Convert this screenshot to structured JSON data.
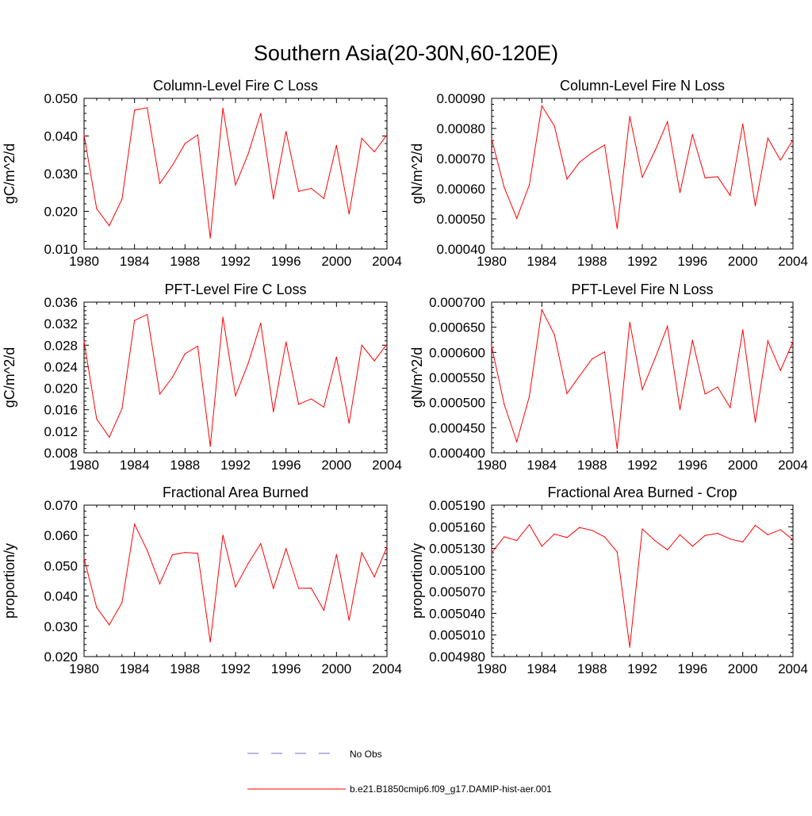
{
  "figure_title": "Southern Asia(20-30N,60-120E)",
  "legend": {
    "entries": [
      {
        "label": "No Obs",
        "color": "#6f6fc8",
        "style": "dashed"
      },
      {
        "label": "b.e21.B1850cmip6.f09_g17.DAMIP-hist-aer.001",
        "color": "#ff0000",
        "style": "solid"
      }
    ]
  },
  "chart_data": [
    {
      "type": "line",
      "title": "Column-Level Fire C Loss",
      "ylabel": "gC/m^2/d",
      "xlabel": "",
      "xlim": [
        1980,
        2004
      ],
      "ylim": [
        0.01,
        0.05
      ],
      "xticks": [
        1980,
        1984,
        1988,
        1992,
        1996,
        2000,
        2004
      ],
      "yticks": [
        "0.010",
        "0.020",
        "0.030",
        "0.040",
        "0.050"
      ],
      "x": [
        1980,
        1981,
        1982,
        1983,
        1984,
        1985,
        1986,
        1987,
        1988,
        1989,
        1990,
        1991,
        1992,
        1993,
        1994,
        1995,
        1996,
        1997,
        1998,
        1999,
        2000,
        2001,
        2002,
        2003,
        2004
      ],
      "series": [
        {
          "name": "b.e21.B1850cmip6.f09_g17.DAMIP-hist-aer.001",
          "color": "#ff0000",
          "values": [
            0.0403,
            0.0207,
            0.0162,
            0.0232,
            0.0469,
            0.0475,
            0.0274,
            0.0322,
            0.038,
            0.0403,
            0.0129,
            0.0474,
            0.027,
            0.0352,
            0.046,
            0.0233,
            0.0412,
            0.0253,
            0.0261,
            0.0234,
            0.0375,
            0.0193,
            0.0394,
            0.0358,
            0.0403
          ]
        }
      ]
    },
    {
      "type": "line",
      "title": "Column-Level Fire N Loss",
      "ylabel": "gN/m^2/d",
      "xlabel": "",
      "xlim": [
        1980,
        2004
      ],
      "ylim": [
        0.0004,
        0.0009
      ],
      "xticks": [
        1980,
        1984,
        1988,
        1992,
        1996,
        2000,
        2004
      ],
      "yticks": [
        "0.00040",
        "0.00050",
        "0.00060",
        "0.00070",
        "0.00080",
        "0.00090"
      ],
      "x": [
        1980,
        1981,
        1982,
        1983,
        1984,
        1985,
        1986,
        1987,
        1988,
        1989,
        1990,
        1991,
        1992,
        1993,
        1994,
        1995,
        1996,
        1997,
        1998,
        1999,
        2000,
        2001,
        2002,
        2003,
        2004
      ],
      "series": [
        {
          "name": "b.e21.B1850cmip6.f09_g17.DAMIP-hist-aer.001",
          "color": "#ff0000",
          "values": [
            0.000765,
            0.000605,
            0.000502,
            0.000612,
            0.000875,
            0.000808,
            0.000632,
            0.000688,
            0.00072,
            0.000745,
            0.000468,
            0.00084,
            0.000638,
            0.000725,
            0.000822,
            0.000587,
            0.00078,
            0.000636,
            0.00064,
            0.000578,
            0.000815,
            0.000543,
            0.000768,
            0.000695,
            0.000762
          ]
        }
      ]
    },
    {
      "type": "line",
      "title": "PFT-Level Fire C Loss",
      "ylabel": "gC/m^2/d",
      "xlabel": "",
      "xlim": [
        1980,
        2004
      ],
      "ylim": [
        0.008,
        0.036
      ],
      "xticks": [
        1980,
        1984,
        1988,
        1992,
        1996,
        2000,
        2004
      ],
      "yticks": [
        "0.008",
        "0.012",
        "0.016",
        "0.020",
        "0.024",
        "0.028",
        "0.032",
        "0.036"
      ],
      "x": [
        1980,
        1981,
        1982,
        1983,
        1984,
        1985,
        1986,
        1987,
        1988,
        1989,
        1990,
        1991,
        1992,
        1993,
        1994,
        1995,
        1996,
        1997,
        1998,
        1999,
        2000,
        2001,
        2002,
        2003,
        2004
      ],
      "series": [
        {
          "name": "b.e21.B1850cmip6.f09_g17.DAMIP-hist-aer.001",
          "color": "#ff0000",
          "values": [
            0.0287,
            0.0143,
            0.0109,
            0.0162,
            0.0326,
            0.0337,
            0.0189,
            0.022,
            0.0264,
            0.0278,
            0.0092,
            0.0332,
            0.0186,
            0.0246,
            0.0321,
            0.0156,
            0.0286,
            0.017,
            0.018,
            0.0165,
            0.0258,
            0.0135,
            0.028,
            0.0251,
            0.0282
          ]
        }
      ]
    },
    {
      "type": "line",
      "title": "PFT-Level Fire N Loss",
      "ylabel": "gN/m^2/d",
      "xlabel": "",
      "xlim": [
        1980,
        2004
      ],
      "ylim": [
        0.0004,
        0.0007
      ],
      "xticks": [
        1980,
        1984,
        1988,
        1992,
        1996,
        2000,
        2004
      ],
      "yticks": [
        "0.000400",
        "0.000450",
        "0.000500",
        "0.000550",
        "0.000600",
        "0.000650",
        "0.000700"
      ],
      "x": [
        1980,
        1981,
        1982,
        1983,
        1984,
        1985,
        1986,
        1987,
        1988,
        1989,
        1990,
        1991,
        1992,
        1993,
        1994,
        1995,
        1996,
        1997,
        1998,
        1999,
        2000,
        2001,
        2002,
        2003,
        2004
      ],
      "series": [
        {
          "name": "b.e21.B1850cmip6.f09_g17.DAMIP-hist-aer.001",
          "color": "#ff0000",
          "values": [
            0.000612,
            0.000497,
            0.000422,
            0.000512,
            0.000685,
            0.000635,
            0.000518,
            0.000553,
            0.000587,
            0.000601,
            0.000408,
            0.00066,
            0.000526,
            0.000587,
            0.000652,
            0.000486,
            0.000624,
            0.000517,
            0.000531,
            0.00049,
            0.000645,
            0.000461,
            0.000623,
            0.000564,
            0.000621
          ]
        }
      ]
    },
    {
      "type": "line",
      "title": "Fractional Area Burned",
      "ylabel": "proportion/y",
      "xlabel": "",
      "xlim": [
        1980,
        2004
      ],
      "ylim": [
        0.02,
        0.07
      ],
      "xticks": [
        1980,
        1984,
        1988,
        1992,
        1996,
        2000,
        2004
      ],
      "yticks": [
        "0.020",
        "0.030",
        "0.040",
        "0.050",
        "0.060",
        "0.070"
      ],
      "x": [
        1980,
        1981,
        1982,
        1983,
        1984,
        1985,
        1986,
        1987,
        1988,
        1989,
        1990,
        1991,
        1992,
        1993,
        1994,
        1995,
        1996,
        1997,
        1998,
        1999,
        2000,
        2001,
        2002,
        2003,
        2004
      ],
      "series": [
        {
          "name": "b.e21.B1850cmip6.f09_g17.DAMIP-hist-aer.001",
          "color": "#ff0000",
          "values": [
            0.0525,
            0.0362,
            0.0305,
            0.0378,
            0.0637,
            0.0551,
            0.044,
            0.0536,
            0.0544,
            0.0541,
            0.0248,
            0.0601,
            0.043,
            0.0507,
            0.0573,
            0.0425,
            0.0556,
            0.0425,
            0.0426,
            0.0353,
            0.0537,
            0.032,
            0.0543,
            0.0463,
            0.0562
          ]
        }
      ]
    },
    {
      "type": "line",
      "title": "Fractional Area Burned - Crop",
      "ylabel": "proportion/y",
      "xlabel": "",
      "xlim": [
        1980,
        2004
      ],
      "ylim": [
        0.00498,
        0.00519
      ],
      "xticks": [
        1980,
        1984,
        1988,
        1992,
        1996,
        2000,
        2004
      ],
      "yticks": [
        "0.004980",
        "0.005010",
        "0.005040",
        "0.005070",
        "0.005100",
        "0.005130",
        "0.005160",
        "0.005190"
      ],
      "x": [
        1980,
        1981,
        1982,
        1983,
        1984,
        1985,
        1986,
        1987,
        1988,
        1989,
        1990,
        1991,
        1992,
        1993,
        1994,
        1995,
        1996,
        1997,
        1998,
        1999,
        2000,
        2001,
        2002,
        2003,
        2004
      ],
      "series": [
        {
          "name": "b.e21.B1850cmip6.f09_g17.DAMIP-hist-aer.001",
          "color": "#ff0000",
          "values": [
            0.005124,
            0.005146,
            0.005141,
            0.005163,
            0.005133,
            0.00515,
            0.005145,
            0.005159,
            0.005155,
            0.005146,
            0.005125,
            0.004993,
            0.005157,
            0.005141,
            0.005128,
            0.005149,
            0.005133,
            0.005148,
            0.005151,
            0.005143,
            0.005139,
            0.005162,
            0.005149,
            0.005156,
            0.005142
          ]
        }
      ]
    }
  ]
}
